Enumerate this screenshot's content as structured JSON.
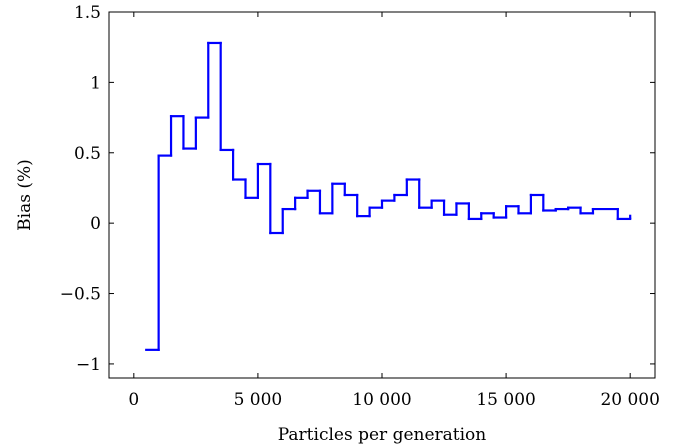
{
  "chart_data": {
    "type": "line",
    "step": true,
    "xlabel": "Particles per generation",
    "ylabel": "Bias (%)",
    "title": "",
    "xlim": [
      -1000,
      21000
    ],
    "ylim": [
      -1.1,
      1.5
    ],
    "xticks": [
      0,
      5000,
      10000,
      15000,
      20000
    ],
    "xtick_labels": [
      "0",
      "5 000",
      "10 000",
      "15 000",
      "20 000"
    ],
    "yticks": [
      -1,
      -0.5,
      0,
      0.5,
      1,
      1.5
    ],
    "ytick_labels": [
      "−1",
      "−0.5",
      "0",
      "0.5",
      "1",
      "1.5"
    ],
    "grid": false,
    "line_color": "#0000ff",
    "series": [
      {
        "values": [
          {
            "x0": 500,
            "x1": 1000,
            "y": -0.9
          },
          {
            "x0": 1000,
            "x1": 1500,
            "y": 0.48
          },
          {
            "x0": 1500,
            "x1": 2000,
            "y": 0.76
          },
          {
            "x0": 2000,
            "x1": 2500,
            "y": 0.53
          },
          {
            "x0": 2500,
            "x1": 3000,
            "y": 0.75
          },
          {
            "x0": 3000,
            "x1": 3500,
            "y": 1.28
          },
          {
            "x0": 3500,
            "x1": 4000,
            "y": 0.52
          },
          {
            "x0": 4000,
            "x1": 4500,
            "y": 0.31
          },
          {
            "x0": 4500,
            "x1": 5000,
            "y": 0.18
          },
          {
            "x0": 5000,
            "x1": 5500,
            "y": 0.42
          },
          {
            "x0": 5500,
            "x1": 6000,
            "y": -0.07
          },
          {
            "x0": 6000,
            "x1": 6500,
            "y": 0.1
          },
          {
            "x0": 6500,
            "x1": 7000,
            "y": 0.18
          },
          {
            "x0": 7000,
            "x1": 7500,
            "y": 0.23
          },
          {
            "x0": 7500,
            "x1": 8000,
            "y": 0.07
          },
          {
            "x0": 8000,
            "x1": 8500,
            "y": 0.28
          },
          {
            "x0": 8500,
            "x1": 9000,
            "y": 0.2
          },
          {
            "x0": 9000,
            "x1": 9500,
            "y": 0.05
          },
          {
            "x0": 9500,
            "x1": 10000,
            "y": 0.11
          },
          {
            "x0": 10000,
            "x1": 10500,
            "y": 0.16
          },
          {
            "x0": 10500,
            "x1": 11000,
            "y": 0.2
          },
          {
            "x0": 11000,
            "x1": 11500,
            "y": 0.31
          },
          {
            "x0": 11500,
            "x1": 12000,
            "y": 0.11
          },
          {
            "x0": 12000,
            "x1": 12500,
            "y": 0.16
          },
          {
            "x0": 12500,
            "x1": 13000,
            "y": 0.06
          },
          {
            "x0": 13000,
            "x1": 13500,
            "y": 0.14
          },
          {
            "x0": 13500,
            "x1": 14000,
            "y": 0.03
          },
          {
            "x0": 14000,
            "x1": 14500,
            "y": 0.07
          },
          {
            "x0": 14500,
            "x1": 15000,
            "y": 0.04
          },
          {
            "x0": 15000,
            "x1": 15500,
            "y": 0.12
          },
          {
            "x0": 15500,
            "x1": 16000,
            "y": 0.07
          },
          {
            "x0": 16000,
            "x1": 16500,
            "y": 0.2
          },
          {
            "x0": 16500,
            "x1": 17000,
            "y": 0.09
          },
          {
            "x0": 17000,
            "x1": 17500,
            "y": 0.1
          },
          {
            "x0": 17500,
            "x1": 18000,
            "y": 0.11
          },
          {
            "x0": 18000,
            "x1": 18500,
            "y": 0.07
          },
          {
            "x0": 18500,
            "x1": 19500,
            "y": 0.1
          },
          {
            "x0": 19500,
            "x1": 20000,
            "y": 0.03
          }
        ],
        "end": {
          "x": 20000,
          "y": 0.06
        }
      }
    ]
  }
}
